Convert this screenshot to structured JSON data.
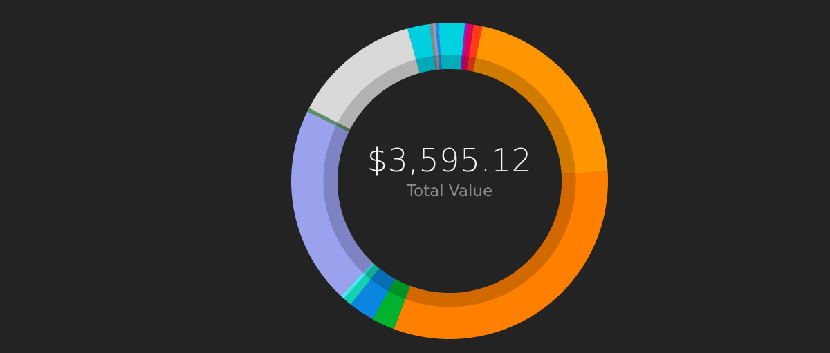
{
  "summary": {
    "total_value": "$3,595.12",
    "caption": "Total Value"
  },
  "chart_data": {
    "type": "pie",
    "style": "donut",
    "unit": "percent_of_total",
    "slices": [
      {
        "value": 20.9,
        "color": "#FF9500"
      },
      {
        "value": 32.0,
        "color": "#FF7F00"
      },
      {
        "value": 2.4,
        "color": "#00B22E"
      },
      {
        "value": 2.7,
        "color": "#0A86E0"
      },
      {
        "value": 0.9,
        "color": "#14D1B0"
      },
      {
        "value": 0.4,
        "color": "#52E6F2"
      },
      {
        "value": 20.4,
        "color": "#9AA2EE"
      },
      {
        "value": 0.4,
        "color": "#5C9065"
      },
      {
        "value": 13.2,
        "color": "#D9D9D9"
      },
      {
        "value": 2.3,
        "color": "#00CFE0"
      },
      {
        "value": 0.3,
        "color": "#7F8C90"
      },
      {
        "value": 0.3,
        "color": "#9AA0A8"
      },
      {
        "value": 0.3,
        "color": "#2F80ED"
      },
      {
        "value": 2.7,
        "color": "#00D2E0"
      },
      {
        "value": 0.3,
        "color": "#9A1CC0"
      },
      {
        "value": 0.6,
        "color": "#E0005A"
      },
      {
        "value": 0.9,
        "color": "#FF3B1A"
      }
    ]
  }
}
